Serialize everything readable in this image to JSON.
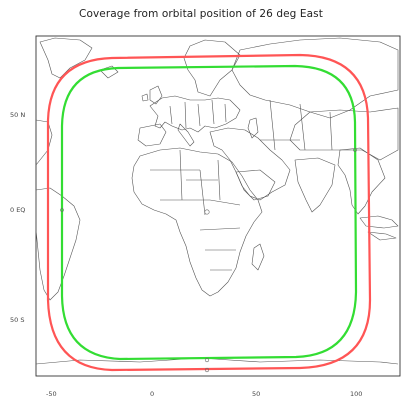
{
  "title": "Coverage from orbital position of 26 deg East",
  "map": {
    "lat_labels": [
      "50 N",
      "0 EQ",
      "50 S"
    ],
    "lon_labels": [
      "-50",
      "0",
      "50",
      "100"
    ],
    "contours": [
      {
        "color": "#ff5555",
        "level": "outer"
      },
      {
        "color": "#33dd33",
        "level": "inner"
      }
    ]
  }
}
